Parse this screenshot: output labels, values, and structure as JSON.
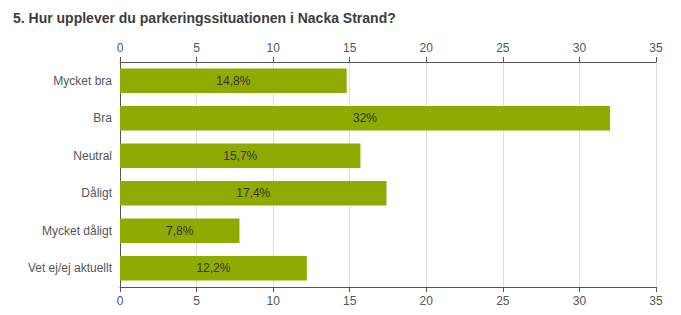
{
  "chart_data": {
    "type": "bar",
    "orientation": "horizontal",
    "title": "5. Hur upplever du parkeringssituationen i Nacka Strand?",
    "categories": [
      "Mycket bra",
      "Bra",
      "Neutral",
      "Dåligt",
      "Mycket dåligt",
      "Vet ej/ej aktuellt"
    ],
    "values": [
      14.8,
      32.0,
      15.7,
      17.4,
      7.8,
      12.2
    ],
    "value_labels": [
      "14,8%",
      "32%",
      "15,7%",
      "17,4%",
      "7,8%",
      "12,2%"
    ],
    "data_labels": true,
    "color": "#8faa00",
    "xlim": [
      0,
      35
    ],
    "xticks": [
      0,
      5,
      10,
      15,
      20,
      25,
      30,
      35
    ],
    "grid": true
  }
}
